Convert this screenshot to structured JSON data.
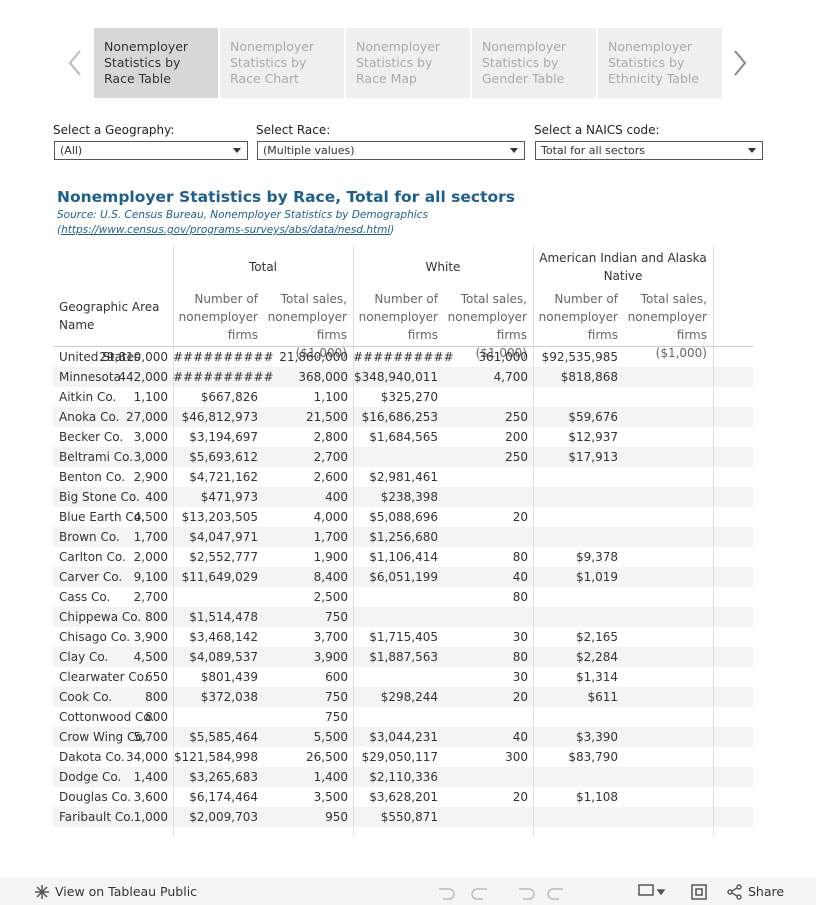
{
  "tabs": [
    "Nonemployer Statistics by Race Table",
    "Nonemployer Statistics by Race Chart",
    "Nonemployer Statistics by Race Map",
    "Nonemployer Statistics by Gender Table",
    "Nonemployer Statistics by Ethnicity Table"
  ],
  "filters": [
    {
      "label": "Select a Geography:",
      "value": "(All)"
    },
    {
      "label": "Select Race:",
      "value": "(Multiple values)"
    },
    {
      "label": "Select a NAICS code:",
      "value": "Total for all sectors"
    }
  ],
  "title": "Nonemployer Statistics by Race, Total for all sectors",
  "source": "Source: U.S. Census Bureau, Nonemployer Statistics  by Demographics",
  "source_link": "https://www.census.gov/programs-surveys/abs/data/nesd.html",
  "table": {
    "row_header": "Geographic Area Name",
    "groups": [
      "Total",
      "White",
      "American Indian and Alaska Native"
    ],
    "subheaders": [
      "Number of nonemployer firms",
      "Total sales, nonemployer firms ($1,000)"
    ],
    "rows": [
      [
        "United States",
        "29,810,000",
        "##########",
        "21,860,000",
        "##########",
        "361,000",
        "$92,535,985"
      ],
      [
        "Minnesota",
        "442,000",
        "##########",
        "368,000",
        "$348,940,011",
        "4,700",
        "$818,868"
      ],
      [
        "Aitkin Co.",
        "1,100",
        "$667,826",
        "1,100",
        "$325,270",
        null,
        null
      ],
      [
        "Anoka Co.",
        "27,000",
        "$46,812,973",
        "21,500",
        "$16,686,253",
        "250",
        "$59,676"
      ],
      [
        "Becker Co.",
        "3,000",
        "$3,194,697",
        "2,800",
        "$1,684,565",
        "200",
        "$12,937"
      ],
      [
        "Beltrami Co.",
        "3,000",
        "$5,693,612",
        "2,700",
        null,
        "250",
        "$17,913"
      ],
      [
        "Benton Co.",
        "2,900",
        "$4,721,162",
        "2,600",
        "$2,981,461",
        null,
        null
      ],
      [
        "Big Stone Co.",
        "400",
        "$471,973",
        "400",
        "$238,398",
        null,
        null
      ],
      [
        "Blue Earth Co.",
        "4,500",
        "$13,203,505",
        "4,000",
        "$5,088,696",
        "20",
        null
      ],
      [
        "Brown Co.",
        "1,700",
        "$4,047,971",
        "1,700",
        "$1,256,680",
        null,
        null
      ],
      [
        "Carlton Co.",
        "2,000",
        "$2,552,777",
        "1,900",
        "$1,106,414",
        "80",
        "$9,378"
      ],
      [
        "Carver Co.",
        "9,100",
        "$11,649,029",
        "8,400",
        "$6,051,199",
        "40",
        "$1,019"
      ],
      [
        "Cass Co.",
        "2,700",
        null,
        "2,500",
        null,
        "80",
        null
      ],
      [
        "Chippewa Co.",
        "800",
        "$1,514,478",
        "750",
        null,
        null,
        null
      ],
      [
        "Chisago Co.",
        "3,900",
        "$3,468,142",
        "3,700",
        "$1,715,405",
        "30",
        "$2,165"
      ],
      [
        "Clay Co.",
        "4,500",
        "$4,089,537",
        "3,900",
        "$1,887,563",
        "80",
        "$2,284"
      ],
      [
        "Clearwater Co.",
        "650",
        "$801,439",
        "600",
        null,
        "30",
        "$1,314"
      ],
      [
        "Cook Co.",
        "800",
        "$372,038",
        "750",
        "$298,244",
        "20",
        "$611"
      ],
      [
        "Cottonwood Co.",
        "800",
        null,
        "750",
        null,
        null,
        null
      ],
      [
        "Crow Wing Co.",
        "5,700",
        "$5,585,464",
        "5,500",
        "$3,044,231",
        "40",
        "$3,390"
      ],
      [
        "Dakota Co.",
        "34,000",
        "$121,584,998",
        "26,500",
        "$29,050,117",
        "300",
        "$83,790"
      ],
      [
        "Dodge Co.",
        "1,400",
        "$3,265,683",
        "1,400",
        "$2,110,336",
        null,
        null
      ],
      [
        "Douglas Co.",
        "3,600",
        "$6,174,464",
        "3,500",
        "$3,628,201",
        "20",
        "$1,108"
      ],
      [
        "Faribault Co.",
        "1,000",
        "$2,009,703",
        "950",
        "$550,871",
        null,
        null
      ]
    ]
  },
  "footer": {
    "view": "View on Tableau Public",
    "share": "Share"
  }
}
